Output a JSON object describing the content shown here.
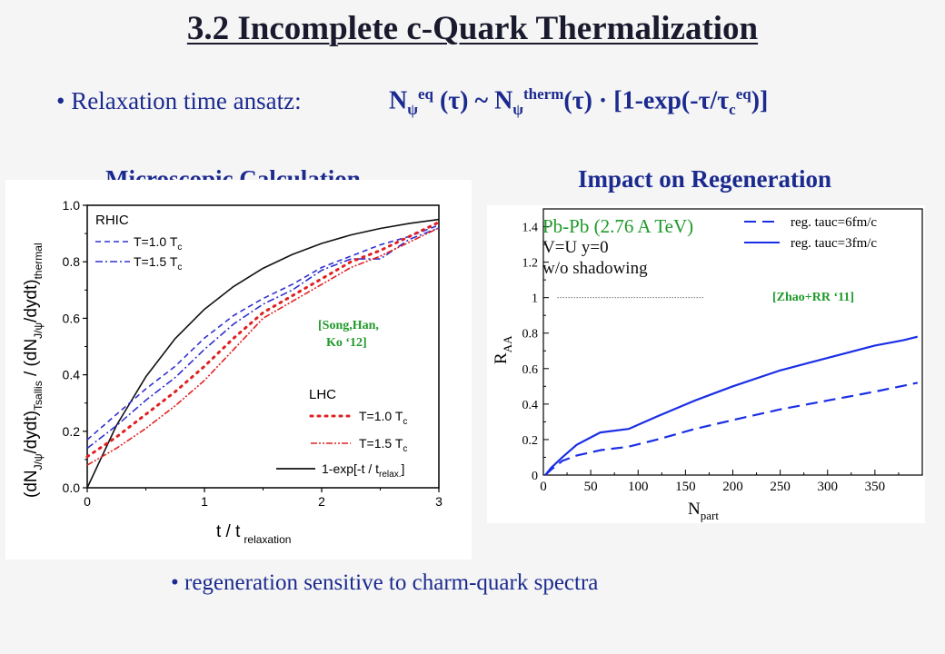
{
  "title": "3.2 Incomplete c-Quark Thermalization",
  "bullet_top": {
    "marker": "•",
    "text": "Relaxation time ansatz:",
    "formula": {
      "N1": "N",
      "psi1": "ψ",
      "eq": "eq",
      "tau1": "(τ)",
      "sim": " ~ ",
      "N2": "N",
      "psi2": "ψ",
      "therm": "therm",
      "tau2": "(τ) · [1-exp(-τ/τ",
      "c": "c",
      "eq2": "eq",
      "close": ")]"
    }
  },
  "headings": {
    "left": "Microscopic Calculation",
    "right": "Impact on Regeneration"
  },
  "bullet_bottom": {
    "marker": "•",
    "text": "regeneration sensitive to charm-quark spectra"
  },
  "colors": {
    "heading_blue": "#1b2a8f",
    "rhic_blue": "#3030d0",
    "lhc_red": "#e02020",
    "reg_blue": "#1a2ee6",
    "green_annot": "#1f9a2a"
  },
  "chart_data": [
    {
      "type": "line",
      "xlabel": "t / t",
      "xlabel_sub": "relaxation",
      "ylabel": "(dN",
      "ylabel_parts": [
        "(dN",
        "J/ψ",
        "/dydt)",
        "Tsallis",
        " / (dN",
        "J/ψ",
        "/dydt)",
        "thermal"
      ],
      "xlim": [
        0,
        3
      ],
      "ylim": [
        0,
        1.0
      ],
      "xticks": [
        "0",
        "1",
        "2",
        "3"
      ],
      "yticks": [
        "0.0",
        "0.2",
        "0.4",
        "0.6",
        "0.8",
        "1.0"
      ],
      "legend": {
        "rhic_title": "RHIC",
        "lhc_title": "LHC",
        "t10": "T=1.0 T",
        "t15": "T=1.5 T",
        "sub_c": "c",
        "exp_label": "1-exp[-t / t",
        "exp_sub": "relax.",
        "exp_close": "]"
      },
      "annotation": [
        "[Song,Han,",
        "Ko ‘12]"
      ],
      "series": [
        {
          "name": "1-exp[-t / t relax.]",
          "style": "solid",
          "color": "#111111",
          "x": [
            0,
            0.25,
            0.5,
            0.75,
            1.0,
            1.25,
            1.5,
            1.75,
            2.0,
            2.25,
            2.5,
            2.75,
            3.0
          ],
          "y": [
            0,
            0.221,
            0.393,
            0.528,
            0.632,
            0.713,
            0.777,
            0.826,
            0.865,
            0.895,
            0.918,
            0.936,
            0.95
          ]
        },
        {
          "name": "RHIC T=1.0 Tc",
          "style": "dash",
          "color": "#3030d0",
          "x": [
            0,
            0.25,
            0.5,
            0.75,
            1.0,
            1.25,
            1.5,
            1.75,
            2.0,
            2.25,
            2.5,
            2.75,
            3.0
          ],
          "y": [
            0.17,
            0.26,
            0.35,
            0.43,
            0.53,
            0.61,
            0.67,
            0.72,
            0.78,
            0.82,
            0.86,
            0.89,
            0.93
          ]
        },
        {
          "name": "RHIC T=1.5 Tc",
          "style": "dashdot",
          "color": "#3030d0",
          "x": [
            0,
            0.25,
            0.5,
            0.75,
            1.0,
            1.25,
            1.5,
            1.75,
            2.0,
            2.25,
            2.5,
            2.75,
            3.0
          ],
          "y": [
            0.14,
            0.22,
            0.31,
            0.39,
            0.49,
            0.58,
            0.65,
            0.7,
            0.77,
            0.81,
            0.81,
            0.88,
            0.92
          ]
        },
        {
          "name": "LHC T=1.0 Tc",
          "style": "dot",
          "color": "#e02020",
          "x": [
            0,
            0.25,
            0.5,
            0.75,
            1.0,
            1.25,
            1.5,
            1.75,
            2.0,
            2.25,
            2.5,
            2.75,
            3.0
          ],
          "y": [
            0.11,
            0.18,
            0.26,
            0.34,
            0.43,
            0.53,
            0.62,
            0.68,
            0.74,
            0.8,
            0.84,
            0.89,
            0.94
          ]
        },
        {
          "name": "LHC T=1.5 Tc",
          "style": "dashdotdot",
          "color": "#e02020",
          "x": [
            0,
            0.25,
            0.5,
            0.75,
            1.0,
            1.25,
            1.5,
            1.75,
            2.0,
            2.25,
            2.5,
            2.75,
            3.0
          ],
          "y": [
            0.08,
            0.14,
            0.21,
            0.29,
            0.38,
            0.49,
            0.6,
            0.66,
            0.72,
            0.78,
            0.82,
            0.87,
            0.92
          ]
        }
      ]
    },
    {
      "type": "line",
      "xlabel": "N",
      "xlabel_sub": "part",
      "ylabel": "R",
      "ylabel_sub": "AA",
      "xlim": [
        0,
        400
      ],
      "ylim": [
        0,
        1.5
      ],
      "xticks": [
        "0",
        "50",
        "100",
        "150",
        "200",
        "250",
        "300",
        "350"
      ],
      "yticks": [
        "0",
        "0.2",
        "0.4",
        "0.6",
        "0.8",
        "1",
        "1.2",
        "1.4"
      ],
      "legend_labels": {
        "green1": "Pb-Pb (2.76 A TeV)",
        "black2": "V=U y=0",
        "black3": "w/o shadowing",
        "tauc6": "reg. tauc=6fm/c",
        "tauc3": "reg. tauc=3fm/c"
      },
      "annotation": "[Zhao+RR ‘11]",
      "series": [
        {
          "name": "reg. tauc=6fm/c",
          "style": "dash",
          "color": "#1a2ee6",
          "x": [
            2,
            8,
            20,
            35,
            60,
            90,
            120,
            160,
            200,
            250,
            300,
            350,
            395
          ],
          "y": [
            0,
            0.03,
            0.08,
            0.11,
            0.14,
            0.16,
            0.2,
            0.26,
            0.31,
            0.37,
            0.42,
            0.47,
            0.52
          ]
        },
        {
          "name": "reg. tauc=3fm/c",
          "style": "solid",
          "color": "#1a2ee6",
          "x": [
            2,
            8,
            20,
            35,
            60,
            90,
            120,
            160,
            200,
            250,
            300,
            350,
            380,
            395
          ],
          "y": [
            0,
            0.04,
            0.1,
            0.17,
            0.24,
            0.26,
            0.33,
            0.42,
            0.5,
            0.59,
            0.66,
            0.73,
            0.76,
            0.78
          ]
        }
      ],
      "reference_line": {
        "y": 1.0,
        "x": [
          15,
          170
        ],
        "style": "dotted"
      }
    }
  ]
}
